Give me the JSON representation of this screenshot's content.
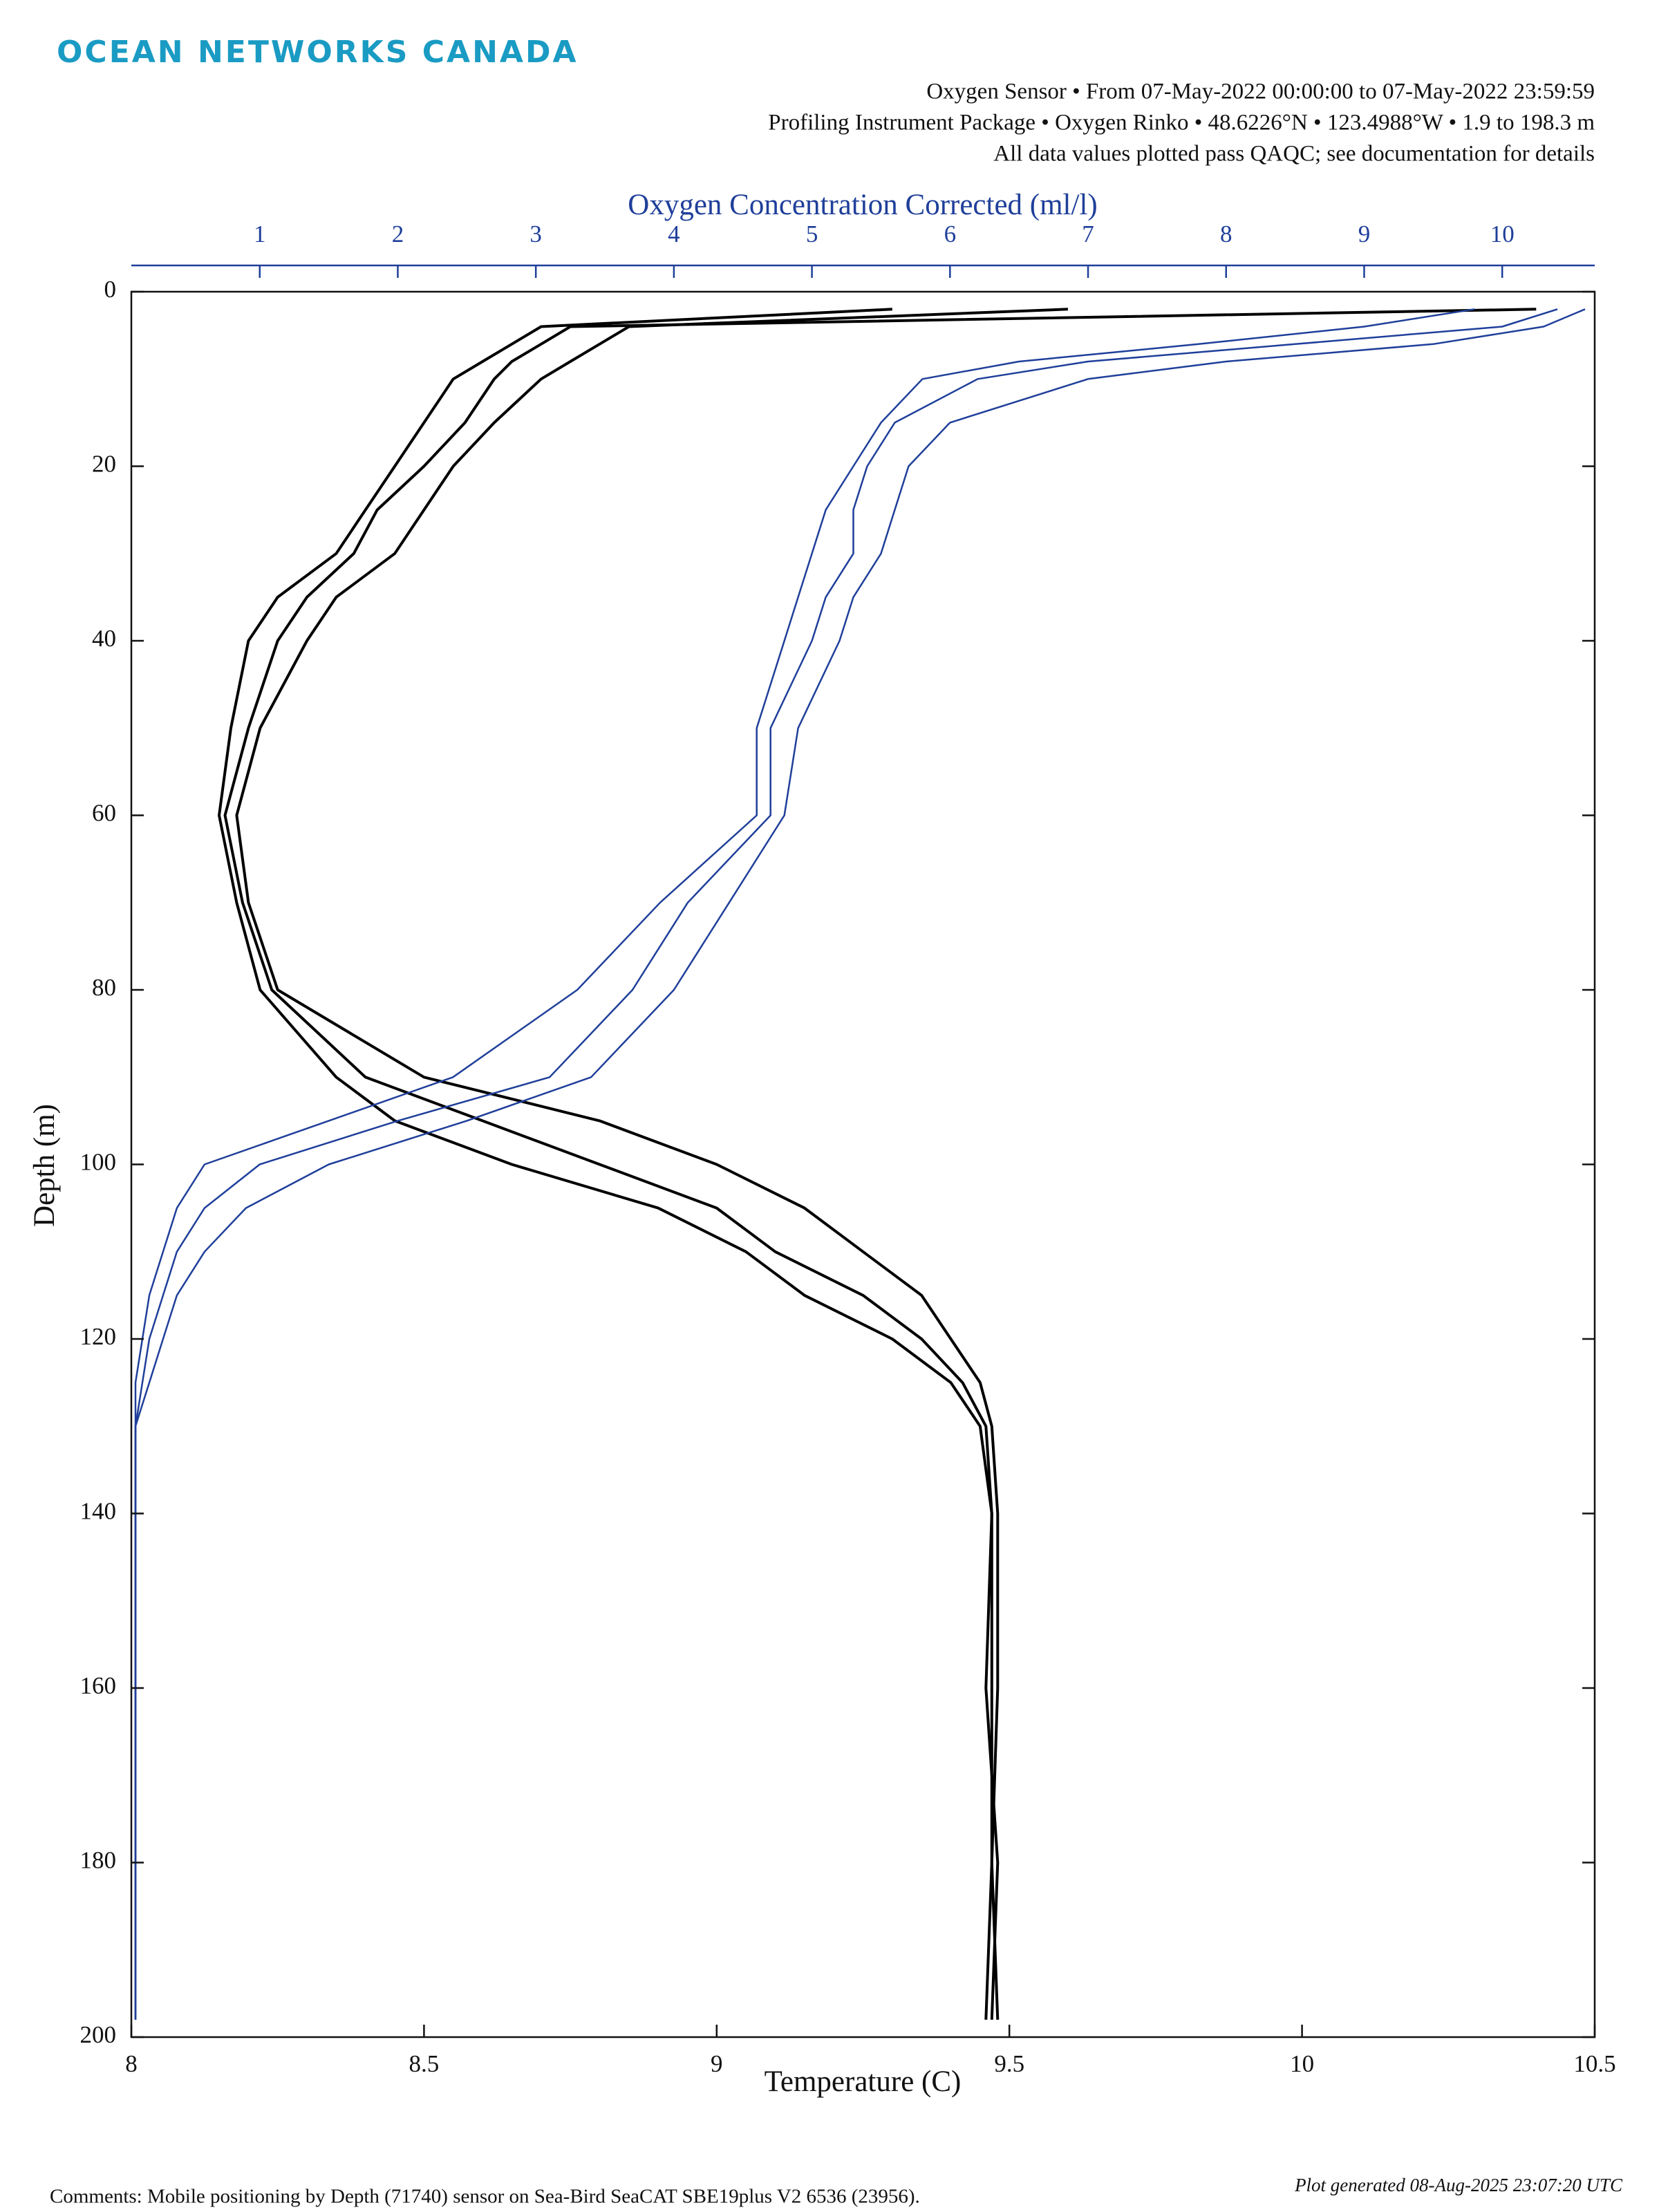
{
  "chart_data": {
    "type": "line",
    "logo": "OCEAN NETWORKS CANADA",
    "title_lines": [
      "Oxygen Sensor • From 07-May-2022 00:00:00 to 07-May-2022 23:59:59",
      "Profiling Instrument Package • Oxygen Rinko • 48.6226°N • 123.4988°W • 1.9 to 198.3 m",
      "All data values plotted pass QAQC; see documentation for details"
    ],
    "xlabel": "Temperature (C)",
    "x2label": "Oxygen Concentration Corrected (ml/l)",
    "ylabel": "Depth (m)",
    "comments": "Comments: Mobile positioning by Depth (71740) sensor on Sea-Bird SeaCAT SBE19plus V2 6536 (23956).",
    "footer": "Plot generated 08-Aug-2025 23:07:20 UTC",
    "xlim": [
      8,
      10.5
    ],
    "xticks": [
      8,
      8.5,
      9,
      9.5,
      10,
      10.5
    ],
    "x2lim": [
      0.07,
      10.67
    ],
    "x2ticks": [
      1,
      2,
      3,
      4,
      5,
      6,
      7,
      8,
      9,
      10
    ],
    "ylim": [
      0,
      200
    ],
    "yticks": [
      0,
      20,
      40,
      60,
      80,
      100,
      120,
      140,
      160,
      180,
      200
    ],
    "y_reversed": true,
    "y": [
      2,
      4,
      6,
      8,
      10,
      15,
      20,
      25,
      30,
      35,
      40,
      50,
      60,
      70,
      80,
      90,
      95,
      100,
      105,
      110,
      115,
      120,
      125,
      130,
      140,
      160,
      180,
      198
    ],
    "series": [
      {
        "color": "#000000",
        "axis": "x",
        "values": [
          9.3,
          8.7,
          8.65,
          8.6,
          8.55,
          8.5,
          8.45,
          8.4,
          8.35,
          8.25,
          8.2,
          8.17,
          8.15,
          8.18,
          8.22,
          8.35,
          8.45,
          8.65,
          8.9,
          9.05,
          9.15,
          9.3,
          9.4,
          9.45,
          9.47,
          9.47,
          9.47,
          9.46
        ]
      },
      {
        "color": "#000000",
        "axis": "x",
        "values": [
          9.6,
          8.85,
          8.8,
          8.75,
          8.7,
          8.62,
          8.55,
          8.5,
          8.45,
          8.35,
          8.3,
          8.22,
          8.18,
          8.2,
          8.25,
          8.5,
          8.8,
          9.0,
          9.15,
          9.25,
          9.35,
          9.4,
          9.45,
          9.47,
          9.48,
          9.48,
          9.47,
          9.48
        ]
      },
      {
        "color": "#000000",
        "axis": "x",
        "values": [
          10.4,
          8.75,
          8.7,
          8.65,
          8.62,
          8.57,
          8.5,
          8.42,
          8.38,
          8.3,
          8.25,
          8.2,
          8.16,
          8.19,
          8.24,
          8.4,
          8.6,
          8.8,
          9.0,
          9.1,
          9.25,
          9.35,
          9.42,
          9.46,
          9.47,
          9.46,
          9.48,
          9.47
        ]
      },
      {
        "color": "#1f3f9a",
        "axis": "x2",
        "values": [
          10.4,
          10.0,
          8.5,
          7.0,
          6.2,
          5.6,
          5.4,
          5.3,
          5.3,
          5.1,
          5.0,
          4.7,
          4.7,
          4.1,
          3.7,
          3.1,
          2.0,
          1.0,
          0.6,
          0.4,
          0.3,
          0.2,
          0.15,
          0.1,
          0.1,
          0.1,
          0.1,
          0.1
        ]
      },
      {
        "color": "#1f3f9a",
        "axis": "x2",
        "values": [
          10.6,
          10.3,
          9.5,
          8.0,
          7.0,
          6.0,
          5.7,
          5.6,
          5.5,
          5.3,
          5.2,
          4.9,
          4.8,
          4.4,
          4.0,
          3.4,
          2.5,
          1.5,
          0.9,
          0.6,
          0.4,
          0.3,
          0.2,
          0.1,
          0.1,
          0.1,
          0.1,
          0.1
        ]
      },
      {
        "color": "#1f3f9a",
        "axis": "x2",
        "values": [
          9.8,
          9.0,
          7.8,
          6.5,
          5.8,
          5.5,
          5.3,
          5.1,
          5.0,
          4.9,
          4.8,
          4.6,
          4.6,
          3.9,
          3.3,
          2.4,
          1.5,
          0.6,
          0.4,
          0.3,
          0.2,
          0.15,
          0.1,
          0.1,
          0.1,
          0.1,
          0.1,
          0.1
        ]
      }
    ]
  }
}
